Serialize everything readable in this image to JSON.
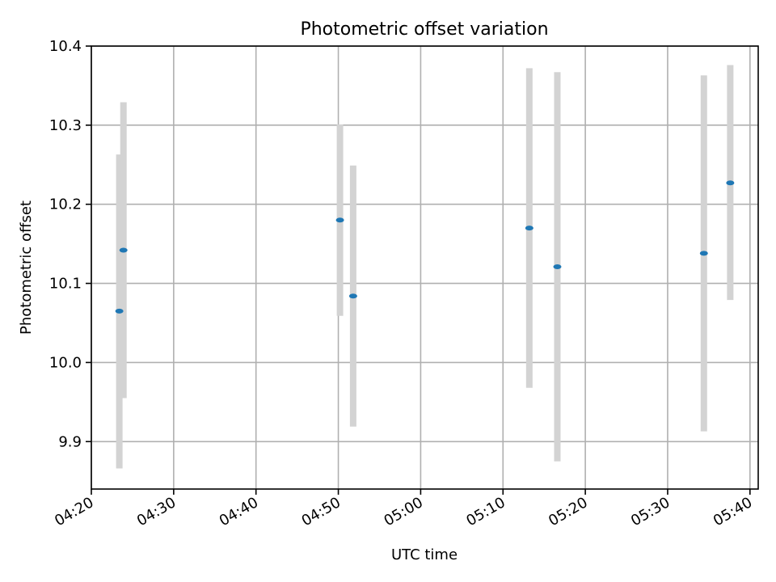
{
  "chart_data": {
    "type": "scatter",
    "title": "Photometric offset variation",
    "xlabel": "UTC time",
    "ylabel": "Photometric offset",
    "xlim": [
      "04:20",
      "05:41"
    ],
    "ylim": [
      9.84,
      10.4
    ],
    "xticks": [
      "04:20",
      "04:30",
      "04:40",
      "04:50",
      "05:00",
      "05:10",
      "05:20",
      "05:30",
      "05:40"
    ],
    "yticks": [
      "9.9",
      "10.0",
      "10.1",
      "10.2",
      "10.3",
      "10.4"
    ],
    "grid": true,
    "legend": "none",
    "colors": {
      "point": "#1f77b4",
      "errorbar": "#d3d3d3"
    },
    "points": [
      {
        "x": "04:23:24",
        "y": 10.065,
        "ylow": 9.866,
        "yhigh": 10.263
      },
      {
        "x": "04:23:54",
        "y": 10.142,
        "ylow": 9.955,
        "yhigh": 10.329
      },
      {
        "x": "04:50:12",
        "y": 10.18,
        "ylow": 10.059,
        "yhigh": 10.301
      },
      {
        "x": "04:51:48",
        "y": 10.084,
        "ylow": 9.919,
        "yhigh": 10.249
      },
      {
        "x": "05:13:12",
        "y": 10.17,
        "ylow": 9.968,
        "yhigh": 10.372
      },
      {
        "x": "05:16:36",
        "y": 10.121,
        "ylow": 9.875,
        "yhigh": 10.367
      },
      {
        "x": "05:34:24",
        "y": 10.138,
        "ylow": 9.913,
        "yhigh": 10.363
      },
      {
        "x": "05:37:36",
        "y": 10.227,
        "ylow": 10.079,
        "yhigh": 10.376
      }
    ]
  }
}
